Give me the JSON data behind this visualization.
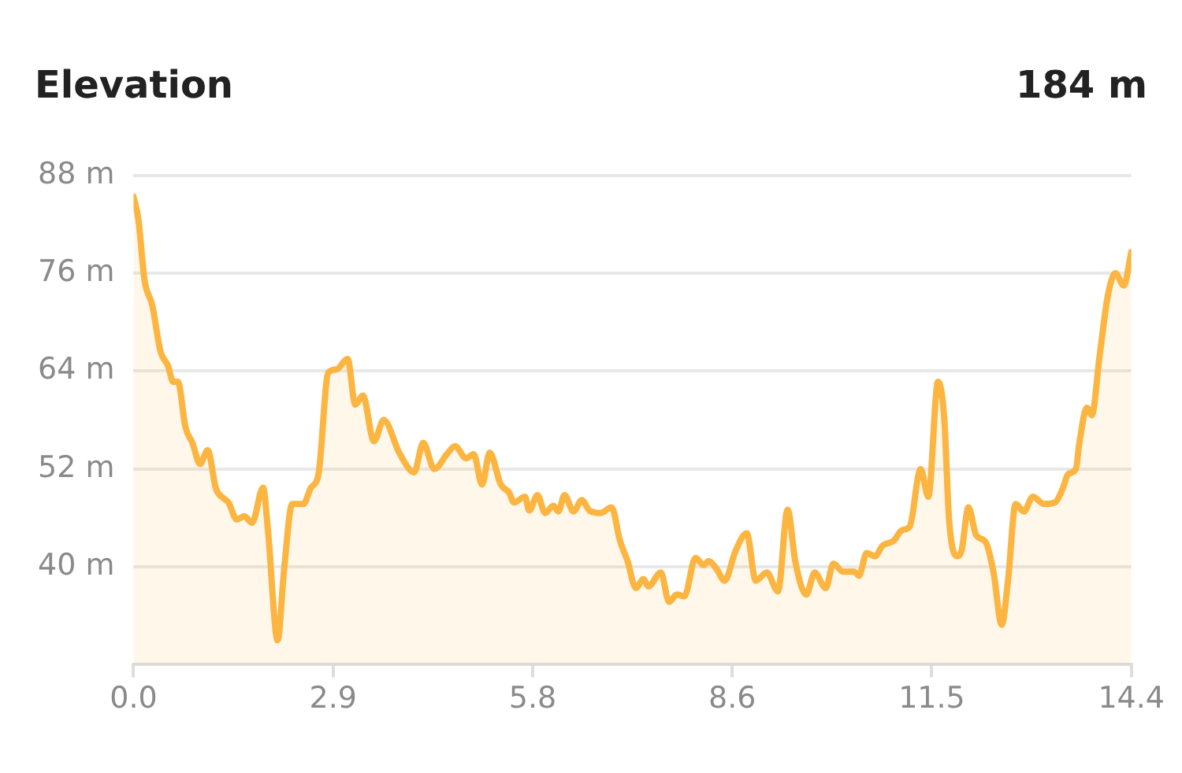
{
  "chart_data": {
    "type": "area",
    "title": "Elevation",
    "annotations": [
      "184 m"
    ],
    "x": [
      0,
      0.07,
      0.16,
      0.27,
      0.39,
      0.5,
      0.57,
      0.64,
      0.75,
      0.85,
      0.96,
      1.07,
      1.19,
      1.3,
      1.37,
      1.49,
      1.6,
      1.71,
      1.87,
      1.94,
      2.08,
      2.17,
      2.29,
      2.45,
      2.56,
      2.67,
      2.81,
      2.93,
      3.09,
      3.2,
      3.31,
      3.47,
      3.61,
      3.84,
      4.05,
      4.18,
      4.34,
      4.53,
      4.64,
      4.8,
      4.91,
      5.03,
      5.14,
      5.3,
      5.42,
      5.49,
      5.65,
      5.71,
      5.83,
      5.94,
      6.06,
      6.13,
      6.22,
      6.35,
      6.47,
      6.58,
      6.74,
      6.9,
      7.02,
      7.13,
      7.25,
      7.36,
      7.43,
      7.61,
      7.73,
      7.84,
      7.95,
      8.11,
      8.23,
      8.3,
      8.41,
      8.53,
      8.69,
      8.85,
      8.98,
      9.14,
      9.3,
      9.44,
      9.55,
      9.71,
      9.83,
      9.99,
      10.1,
      10.24,
      10.4,
      10.47,
      10.58,
      10.7,
      10.81,
      10.97,
      11.09,
      11.2,
      11.36,
      11.47,
      11.61,
      11.7,
      11.77,
      11.89,
      11.95,
      12.05,
      12.16,
      12.3,
      12.41,
      12.53,
      12.62,
      12.73,
      12.85,
      12.98,
      13.14,
      13.3,
      13.41,
      13.49,
      13.6,
      13.65,
      13.76,
      13.83,
      13.94,
      14.06,
      14.17,
      14.29,
      14.4
    ],
    "series": [
      {
        "color": "#fbb540",
        "values": [
          85.4,
          82.6,
          75.1,
          72.1,
          66.4,
          64.6,
          62.7,
          62.7,
          57.1,
          55.2,
          52.6,
          54.3,
          49.6,
          48.4,
          47.9,
          45.8,
          46.2,
          45.4,
          49.7,
          44.5,
          31,
          39.4,
          47.7,
          47.7,
          49.7,
          51.4,
          63.8,
          64.2,
          65.5,
          59.9,
          61,
          55.4,
          58,
          53.9,
          51.6,
          55.2,
          52,
          53.9,
          54.8,
          53.3,
          53.8,
          50.1,
          54,
          50.1,
          49.1,
          47.9,
          48.6,
          46.9,
          48.8,
          46.6,
          47.5,
          46.8,
          48.8,
          46.8,
          48.2,
          46.9,
          46.6,
          47.3,
          43.2,
          40.7,
          37.4,
          38.5,
          37.6,
          39.3,
          35.7,
          36.6,
          36.4,
          41.1,
          40.2,
          40.7,
          39.8,
          38.3,
          42,
          44.1,
          38.3,
          39.3,
          37,
          47,
          40.7,
          36.6,
          39.3,
          37.4,
          40.4,
          39.4,
          39.4,
          38.9,
          41.7,
          41.3,
          42.6,
          43.2,
          44.5,
          44.9,
          52,
          48.6,
          62.7,
          58.2,
          45.8,
          41.3,
          42,
          47.3,
          43.9,
          43,
          39.4,
          32.9,
          38.3,
          47.7,
          46.8,
          48.6,
          47.7,
          47.9,
          49.6,
          51.4,
          52,
          55.2,
          59.5,
          58.6,
          65.7,
          73.2,
          76,
          74.5,
          78.6
        ]
      }
    ],
    "xlim": [
      0,
      14.4
    ],
    "ylim": [
      28,
      88
    ],
    "xticks": [
      {
        "value": 0,
        "label": "0.0"
      },
      {
        "value": 2.88,
        "label": "2.9"
      },
      {
        "value": 5.76,
        "label": "5.8"
      },
      {
        "value": 8.64,
        "label": "8.6"
      },
      {
        "value": 11.52,
        "label": "11.5"
      },
      14.4
    ],
    "yticks": [
      {
        "value": 40,
        "label": "40 m"
      },
      {
        "value": 52,
        "label": "52 m"
      },
      {
        "value": 64,
        "label": "64 m"
      },
      {
        "value": 76,
        "label": "76 m"
      },
      {
        "value": 88,
        "label": "88 m"
      }
    ],
    "grid": "y",
    "legend": false,
    "marker": "none",
    "line_style": "solid"
  }
}
